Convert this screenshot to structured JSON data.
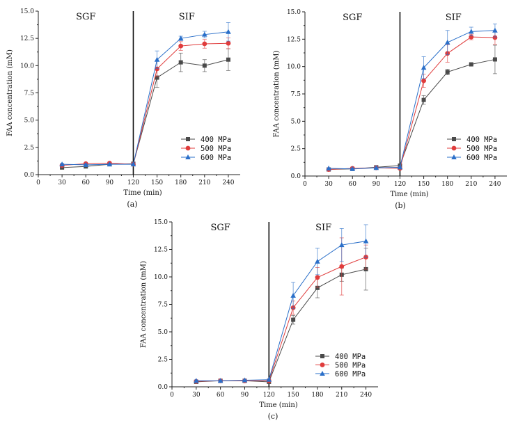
{
  "chart_data": [
    {
      "type": "line",
      "caption": "(a)",
      "xlabel": "Time (min)",
      "ylabel": "FAA concentration (mM)",
      "regions": [
        "SGF",
        "SIF"
      ],
      "xlim": [
        0,
        255
      ],
      "ylim": [
        0,
        15
      ],
      "x_ticks": [
        0,
        30,
        60,
        90,
        120,
        150,
        180,
        210,
        240
      ],
      "y_ticks": [
        "0.0",
        "2.5",
        "5.0",
        "7.5",
        "10.0",
        "12.5",
        "15.0"
      ],
      "divider_x": 120,
      "x": [
        30,
        60,
        90,
        120,
        150,
        180,
        210,
        240
      ],
      "legend_position": "center-right",
      "series": [
        {
          "name": "400 MPa",
          "color": "#4a4a4a",
          "marker": "square",
          "values": [
            0.65,
            0.75,
            0.95,
            1.0,
            8.9,
            10.3,
            10.0,
            10.55
          ],
          "errors": [
            0.08,
            0.1,
            0.08,
            0.1,
            0.9,
            0.85,
            0.55,
            1.0
          ]
        },
        {
          "name": "500 MPa",
          "color": "#e03c3c",
          "marker": "circle",
          "values": [
            0.85,
            1.0,
            1.05,
            0.95,
            9.7,
            11.8,
            12.0,
            12.05
          ],
          "errors": [
            0.08,
            0.08,
            0.08,
            0.1,
            0.7,
            0.4,
            0.4,
            0.5
          ]
        },
        {
          "name": "600 MPa",
          "color": "#2a6fc9",
          "marker": "triangle",
          "values": [
            0.95,
            0.9,
            0.95,
            0.95,
            10.55,
            12.5,
            12.85,
            13.1
          ],
          "errors": [
            0.08,
            0.08,
            0.08,
            0.1,
            0.8,
            0.2,
            0.3,
            0.85
          ]
        }
      ]
    },
    {
      "type": "line",
      "caption": "(b)",
      "xlabel": "Time (min)",
      "ylabel": "FAA concentration (mM)",
      "regions": [
        "SGF",
        "SIF"
      ],
      "xlim": [
        0,
        255
      ],
      "ylim": [
        0,
        15
      ],
      "x_ticks": [
        0,
        30,
        60,
        90,
        120,
        150,
        180,
        210,
        240
      ],
      "y_ticks": [
        "0.0",
        "2.5",
        "5.0",
        "7.5",
        "10.0",
        "12.5",
        "15.0"
      ],
      "divider_x": 120,
      "x": [
        30,
        60,
        90,
        120,
        150,
        180,
        210,
        240
      ],
      "legend_position": "center-right",
      "series": [
        {
          "name": "400 MPa",
          "color": "#4a4a4a",
          "marker": "square",
          "values": [
            0.6,
            0.65,
            0.8,
            0.95,
            6.95,
            9.5,
            10.2,
            10.65
          ],
          "errors": [
            0.05,
            0.05,
            0.08,
            0.1,
            0.4,
            0.25,
            0.1,
            1.3
          ]
        },
        {
          "name": "500 MPa",
          "color": "#e03c3c",
          "marker": "circle",
          "values": [
            0.6,
            0.7,
            0.75,
            0.7,
            8.7,
            11.2,
            12.7,
            12.65
          ],
          "errors": [
            0.05,
            0.05,
            0.08,
            0.1,
            0.6,
            0.8,
            0.25,
            0.6
          ]
        },
        {
          "name": "600 MPa",
          "color": "#2a6fc9",
          "marker": "triangle",
          "values": [
            0.7,
            0.65,
            0.75,
            0.8,
            9.9,
            12.2,
            13.2,
            13.3
          ],
          "errors": [
            0.05,
            0.05,
            0.08,
            0.1,
            1.0,
            1.1,
            0.4,
            0.6
          ]
        }
      ]
    },
    {
      "type": "line",
      "caption": "(c)",
      "xlabel": "Time (min)",
      "ylabel": "FAA concentration (mM)",
      "regions": [
        "SGF",
        "SIF"
      ],
      "xlim": [
        0,
        255
      ],
      "ylim": [
        0,
        15
      ],
      "x_ticks": [
        0,
        30,
        60,
        90,
        120,
        150,
        180,
        210,
        240
      ],
      "y_ticks": [
        "0.0",
        "2.5",
        "5.0",
        "7.5",
        "10.0",
        "12.5",
        "15.0"
      ],
      "divider_x": 120,
      "x": [
        30,
        60,
        90,
        120,
        150,
        180,
        210,
        240
      ],
      "legend_position": "bottom-right",
      "series": [
        {
          "name": "400 MPa",
          "color": "#4a4a4a",
          "marker": "square",
          "values": [
            0.45,
            0.55,
            0.55,
            0.45,
            6.1,
            9.0,
            10.2,
            10.7
          ],
          "errors": [
            0.08,
            0.08,
            0.08,
            0.1,
            0.4,
            0.9,
            0.6,
            1.9
          ]
        },
        {
          "name": "500 MPa",
          "color": "#e03c3c",
          "marker": "circle",
          "values": [
            0.5,
            0.55,
            0.55,
            0.55,
            7.2,
            9.95,
            10.95,
            11.8
          ],
          "errors": [
            0.08,
            0.08,
            0.08,
            0.1,
            0.6,
            0.9,
            2.6,
            1.1
          ]
        },
        {
          "name": "600 MPa",
          "color": "#2a6fc9",
          "marker": "triangle",
          "values": [
            0.55,
            0.55,
            0.6,
            0.65,
            8.3,
            11.4,
            12.9,
            13.25
          ],
          "errors": [
            0.08,
            0.08,
            0.08,
            0.1,
            1.2,
            1.2,
            1.5,
            1.5
          ]
        }
      ]
    }
  ]
}
